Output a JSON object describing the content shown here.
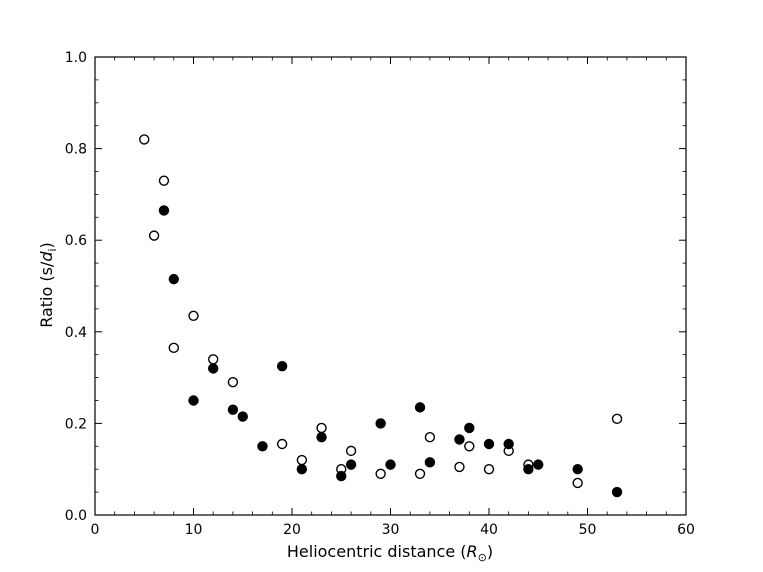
{
  "chart_data": {
    "type": "scatter",
    "title": "",
    "xlabel": {
      "text": "Heliocentric distance (",
      "math": "R",
      "sub": "⊙",
      "close": ")"
    },
    "ylabel": {
      "text": "Ratio (s/",
      "math": "d",
      "sub": "i",
      "close": ")"
    },
    "xlim": [
      0,
      60
    ],
    "ylim": [
      0.0,
      1.0
    ],
    "xticks": [
      0,
      10,
      20,
      30,
      40,
      50,
      60
    ],
    "yticks": [
      0.0,
      0.2,
      0.4,
      0.6,
      0.8,
      1.0
    ],
    "xtick_labels": [
      "0",
      "10",
      "20",
      "30",
      "40",
      "50",
      "60"
    ],
    "ytick_labels": [
      "0.0",
      "0.2",
      "0.4",
      "0.6",
      "0.8",
      "1.0"
    ],
    "grid": false,
    "series": [
      {
        "marker": "open-circle",
        "color": "#000000",
        "x": [
          5,
          6,
          7,
          8,
          10,
          12,
          14,
          19,
          21,
          23,
          25,
          26,
          29,
          33,
          34,
          37,
          38,
          40,
          42,
          44,
          49,
          53
        ],
        "y": [
          0.82,
          0.61,
          0.73,
          0.365,
          0.435,
          0.34,
          0.29,
          0.155,
          0.12,
          0.19,
          0.1,
          0.14,
          0.09,
          0.09,
          0.17,
          0.105,
          0.15,
          0.1,
          0.14,
          0.11,
          0.07,
          0.21
        ]
      },
      {
        "marker": "filled-circle",
        "color": "#000000",
        "x": [
          7,
          8,
          10,
          12,
          14,
          15,
          17,
          19,
          21,
          23,
          25,
          26,
          29,
          30,
          33,
          34,
          37,
          38,
          40,
          42,
          44,
          45,
          49,
          53
        ],
        "y": [
          0.665,
          0.515,
          0.25,
          0.32,
          0.23,
          0.215,
          0.15,
          0.325,
          0.1,
          0.17,
          0.085,
          0.11,
          0.2,
          0.11,
          0.235,
          0.115,
          0.165,
          0.19,
          0.155,
          0.155,
          0.1,
          0.11,
          0.1,
          0.05
        ]
      }
    ]
  }
}
